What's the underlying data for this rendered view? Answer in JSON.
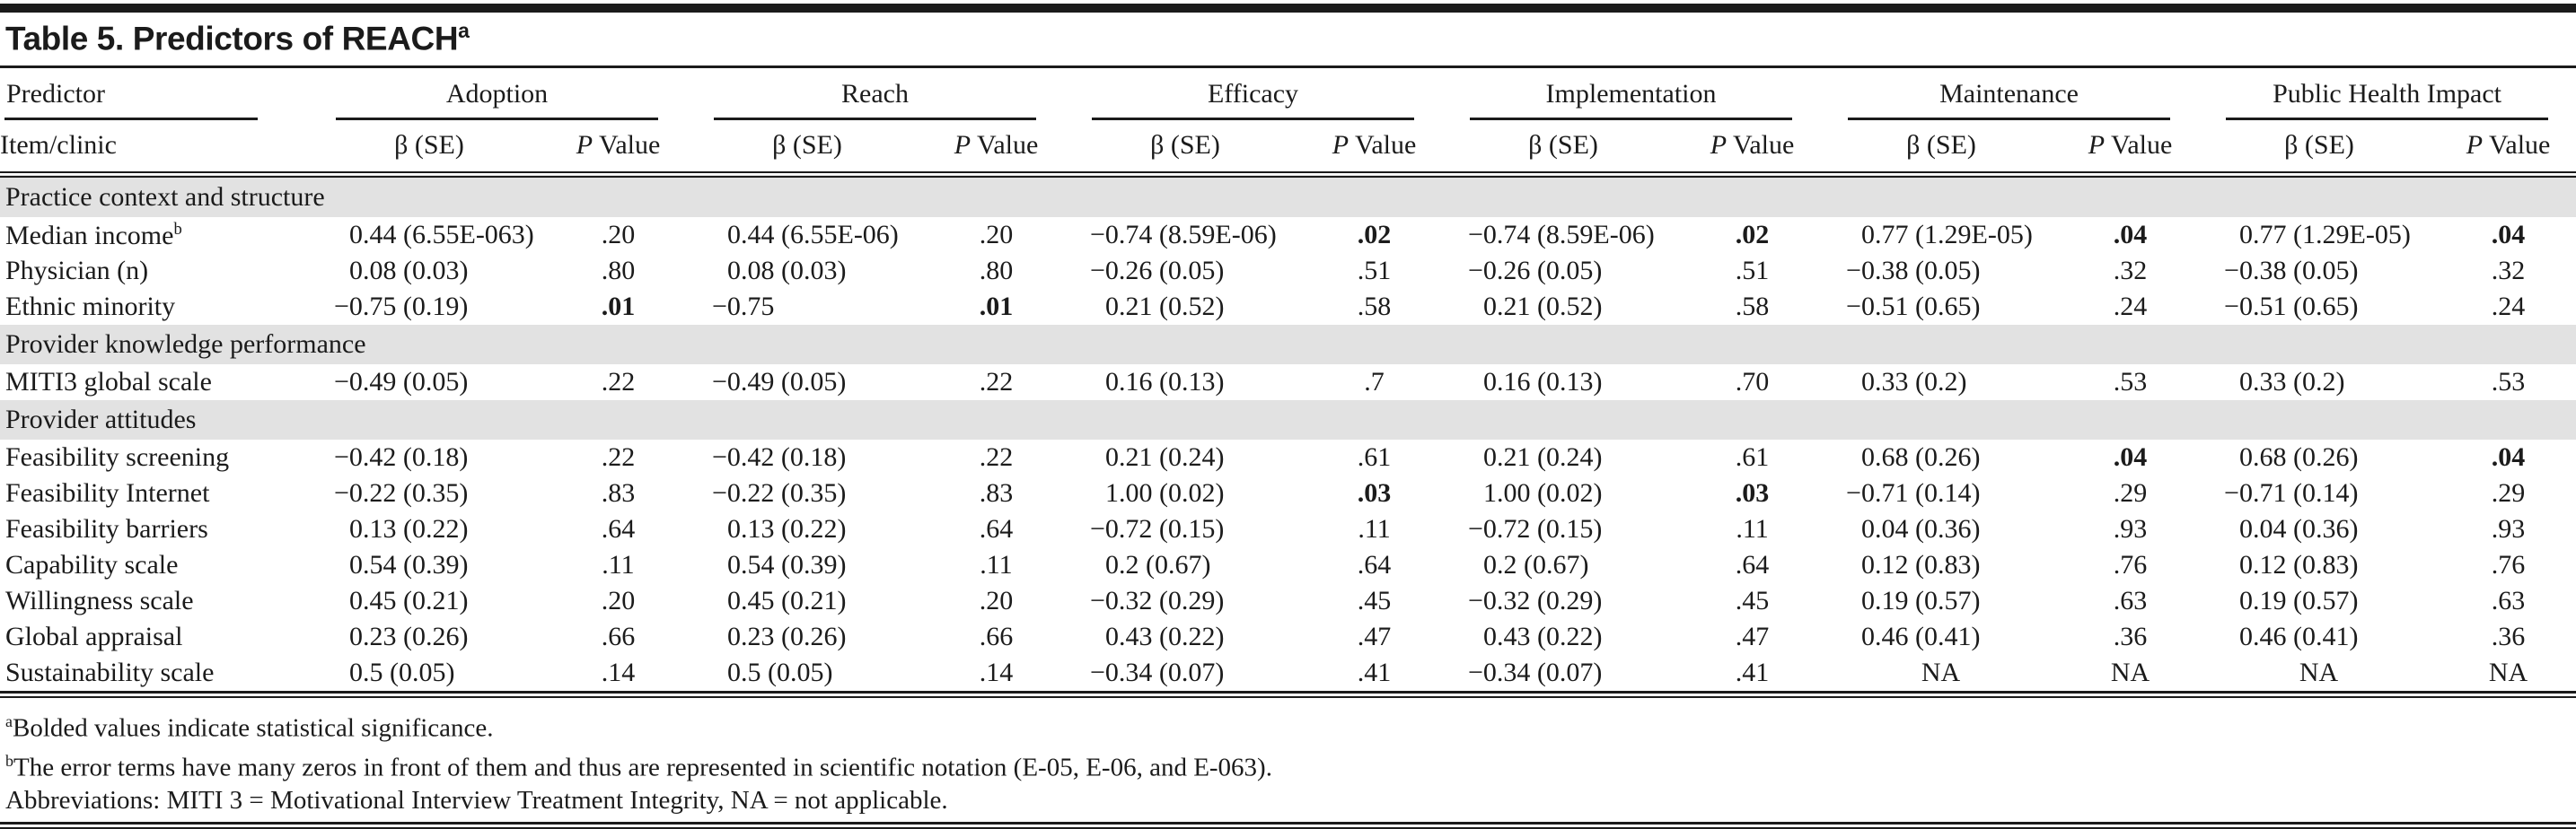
{
  "title": {
    "text": "Table 5. Predictors of REACH",
    "sup": "a"
  },
  "header": {
    "predictor": "Predictor",
    "item_clinic": "Item/clinic",
    "groups": [
      "Adoption",
      "Reach",
      "Efficacy",
      "Implementation",
      "Maintenance",
      "Public Health Impact"
    ],
    "beta_label": "β (SE)",
    "p_label_italic": "P",
    "p_label_rest": " Value"
  },
  "sections": [
    {
      "name": "Practice context and structure",
      "rows": [
        {
          "label": "Median income",
          "sup": "b",
          "cells": [
            {
              "v": "0.44 (6.55E-063)"
            },
            {
              "v": ".20"
            },
            {
              "v": "0.44 (6.55E-06)"
            },
            {
              "v": ".20"
            },
            {
              "v": "−0.74 (8.59E-06)"
            },
            {
              "v": ".02",
              "b": true
            },
            {
              "v": "−0.74 (8.59E-06)"
            },
            {
              "v": ".02",
              "b": true
            },
            {
              "v": "0.77 (1.29E-05)"
            },
            {
              "v": ".04",
              "b": true
            },
            {
              "v": "0.77 (1.29E-05)"
            },
            {
              "v": ".04",
              "b": true
            }
          ]
        },
        {
          "label": "Physician (n)",
          "cells": [
            {
              "v": "0.08 (0.03)"
            },
            {
              "v": ".80"
            },
            {
              "v": "0.08 (0.03)"
            },
            {
              "v": ".80"
            },
            {
              "v": "−0.26 (0.05)"
            },
            {
              "v": ".51"
            },
            {
              "v": "−0.26 (0.05)"
            },
            {
              "v": ".51"
            },
            {
              "v": "−0.38 (0.05)"
            },
            {
              "v": ".32"
            },
            {
              "v": "−0.38 (0.05)"
            },
            {
              "v": ".32"
            }
          ]
        },
        {
          "label": "Ethnic minority",
          "cells": [
            {
              "v": "−0.75 (0.19)"
            },
            {
              "v": ".01",
              "b": true
            },
            {
              "v": "−0.75"
            },
            {
              "v": ".01",
              "b": true
            },
            {
              "v": "0.21 (0.52)"
            },
            {
              "v": ".58"
            },
            {
              "v": "0.21 (0.52)"
            },
            {
              "v": ".58"
            },
            {
              "v": "−0.51 (0.65)"
            },
            {
              "v": ".24"
            },
            {
              "v": "−0.51 (0.65)"
            },
            {
              "v": ".24"
            }
          ]
        }
      ]
    },
    {
      "name": "Provider knowledge performance",
      "rows": [
        {
          "label": "MITI3 global scale",
          "cells": [
            {
              "v": "−0.49 (0.05)"
            },
            {
              "v": ".22"
            },
            {
              "v": "−0.49 (0.05)"
            },
            {
              "v": ".22"
            },
            {
              "v": "0.16 (0.13)"
            },
            {
              "v": ".7"
            },
            {
              "v": "0.16 (0.13)"
            },
            {
              "v": ".70"
            },
            {
              "v": "0.33 (0.2)"
            },
            {
              "v": ".53"
            },
            {
              "v": "0.33 (0.2)"
            },
            {
              "v": ".53"
            }
          ]
        }
      ]
    },
    {
      "name": "Provider attitudes",
      "rows": [
        {
          "label": "Feasibility screening",
          "cells": [
            {
              "v": "−0.42 (0.18)"
            },
            {
              "v": ".22"
            },
            {
              "v": "−0.42 (0.18)"
            },
            {
              "v": ".22"
            },
            {
              "v": "0.21 (0.24)"
            },
            {
              "v": ".61"
            },
            {
              "v": "0.21 (0.24)"
            },
            {
              "v": ".61"
            },
            {
              "v": "0.68 (0.26)"
            },
            {
              "v": ".04",
              "b": true
            },
            {
              "v": "0.68 (0.26)"
            },
            {
              "v": ".04",
              "b": true
            }
          ]
        },
        {
          "label": "Feasibility Internet",
          "cells": [
            {
              "v": "−0.22 (0.35)"
            },
            {
              "v": ".83"
            },
            {
              "v": "−0.22 (0.35)"
            },
            {
              "v": ".83"
            },
            {
              "v": "1.00 (0.02)"
            },
            {
              "v": ".03",
              "b": true
            },
            {
              "v": "1.00 (0.02)"
            },
            {
              "v": ".03",
              "b": true
            },
            {
              "v": "−0.71 (0.14)"
            },
            {
              "v": ".29"
            },
            {
              "v": "−0.71 (0.14)"
            },
            {
              "v": ".29"
            }
          ]
        },
        {
          "label": "Feasibility barriers",
          "cells": [
            {
              "v": "0.13 (0.22)"
            },
            {
              "v": ".64"
            },
            {
              "v": "0.13 (0.22)"
            },
            {
              "v": ".64"
            },
            {
              "v": "−0.72 (0.15)"
            },
            {
              "v": ".11"
            },
            {
              "v": "−0.72 (0.15)"
            },
            {
              "v": ".11"
            },
            {
              "v": "0.04 (0.36)"
            },
            {
              "v": ".93"
            },
            {
              "v": "0.04 (0.36)"
            },
            {
              "v": ".93"
            }
          ]
        },
        {
          "label": "Capability scale",
          "cells": [
            {
              "v": "0.54 (0.39)"
            },
            {
              "v": ".11"
            },
            {
              "v": "0.54 (0.39)"
            },
            {
              "v": ".11"
            },
            {
              "v": "0.2 (0.67)"
            },
            {
              "v": ".64"
            },
            {
              "v": "0.2 (0.67)"
            },
            {
              "v": ".64"
            },
            {
              "v": "0.12 (0.83)"
            },
            {
              "v": ".76"
            },
            {
              "v": "0.12 (0.83)"
            },
            {
              "v": ".76"
            }
          ]
        },
        {
          "label": "Willingness scale",
          "cells": [
            {
              "v": "0.45 (0.21)"
            },
            {
              "v": ".20"
            },
            {
              "v": "0.45 (0.21)"
            },
            {
              "v": ".20"
            },
            {
              "v": "−0.32 (0.29)"
            },
            {
              "v": ".45"
            },
            {
              "v": "−0.32 (0.29)"
            },
            {
              "v": ".45"
            },
            {
              "v": "0.19 (0.57)"
            },
            {
              "v": ".63"
            },
            {
              "v": "0.19 (0.57)"
            },
            {
              "v": ".63"
            }
          ]
        },
        {
          "label": "Global appraisal",
          "cells": [
            {
              "v": "0.23 (0.26)"
            },
            {
              "v": ".66"
            },
            {
              "v": "0.23 (0.26)"
            },
            {
              "v": ".66"
            },
            {
              "v": "0.43 (0.22)"
            },
            {
              "v": ".47"
            },
            {
              "v": "0.43 (0.22)"
            },
            {
              "v": ".47"
            },
            {
              "v": "0.46 (0.41)"
            },
            {
              "v": ".36"
            },
            {
              "v": "0.46 (0.41)"
            },
            {
              "v": ".36"
            }
          ]
        },
        {
          "label": "Sustainability scale",
          "cells": [
            {
              "v": "0.5 (0.05)"
            },
            {
              "v": ".14"
            },
            {
              "v": "0.5 (0.05)"
            },
            {
              "v": ".14"
            },
            {
              "v": "−0.34 (0.07)"
            },
            {
              "v": ".41"
            },
            {
              "v": "−0.34 (0.07)"
            },
            {
              "v": ".41"
            },
            {
              "v": "NA"
            },
            {
              "v": "NA"
            },
            {
              "v": "NA"
            },
            {
              "v": "NA"
            }
          ]
        }
      ]
    }
  ],
  "footnotes": [
    {
      "sup": "a",
      "text": "Bolded values indicate statistical significance."
    },
    {
      "sup": "b",
      "text": "The error terms have many zeros in front of them and thus are represented in scientific notation (E-05, E-06, and E-063)."
    },
    {
      "sup": "",
      "text": "Abbreviations: MITI 3 = Motivational Interview Treatment Integrity, NA = not applicable."
    }
  ],
  "colors": {
    "rule": "#1b1b1b",
    "section_band": "#e2e2e2",
    "text": "#1b1b1b"
  }
}
